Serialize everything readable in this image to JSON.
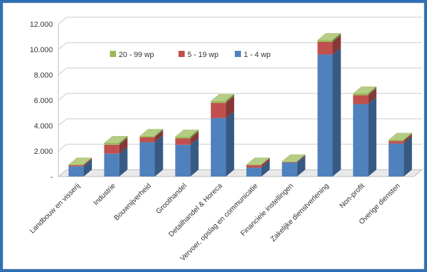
{
  "chart_data": {
    "type": "bar",
    "stacked": true,
    "style": "3d-column",
    "categories": [
      "Landbouw en visserij",
      "Industrie",
      "Bouwnijverheid",
      "Groothandel",
      "Detailhandel & Horeca",
      "Vervoer, opslag en communicatie",
      "Financiele instellingen",
      "Zakelijke dienstverlening",
      "Non-profit",
      "Overige diensten"
    ],
    "series": [
      {
        "name": "1 - 4 wp",
        "color": "#4f81bd",
        "values": [
          800,
          1800,
          2700,
          2500,
          4600,
          700,
          1100,
          9600,
          5700,
          2600
        ]
      },
      {
        "name": "5 - 19 wp",
        "color": "#c0504d",
        "values": [
          100,
          700,
          400,
          500,
          1200,
          200,
          50,
          1000,
          700,
          200
        ]
      },
      {
        "name": "20 - 99 wp",
        "color": "#9bbb59",
        "values": [
          50,
          150,
          100,
          150,
          150,
          50,
          50,
          150,
          150,
          100
        ]
      }
    ],
    "legend_order": [
      "20 - 99 wp",
      "5 - 19 wp",
      "1 - 4 wp"
    ],
    "legend_position": "top-left",
    "ylim": [
      0,
      12000
    ],
    "y_ticks": [
      0,
      2000,
      4000,
      6000,
      8000,
      10000,
      12000
    ],
    "y_tick_labels": [
      "-",
      "2.000",
      "4.000",
      "6.000",
      "8.000",
      "10.000",
      "12.000"
    ],
    "grid": true,
    "title": "",
    "xlabel": "",
    "ylabel": ""
  }
}
